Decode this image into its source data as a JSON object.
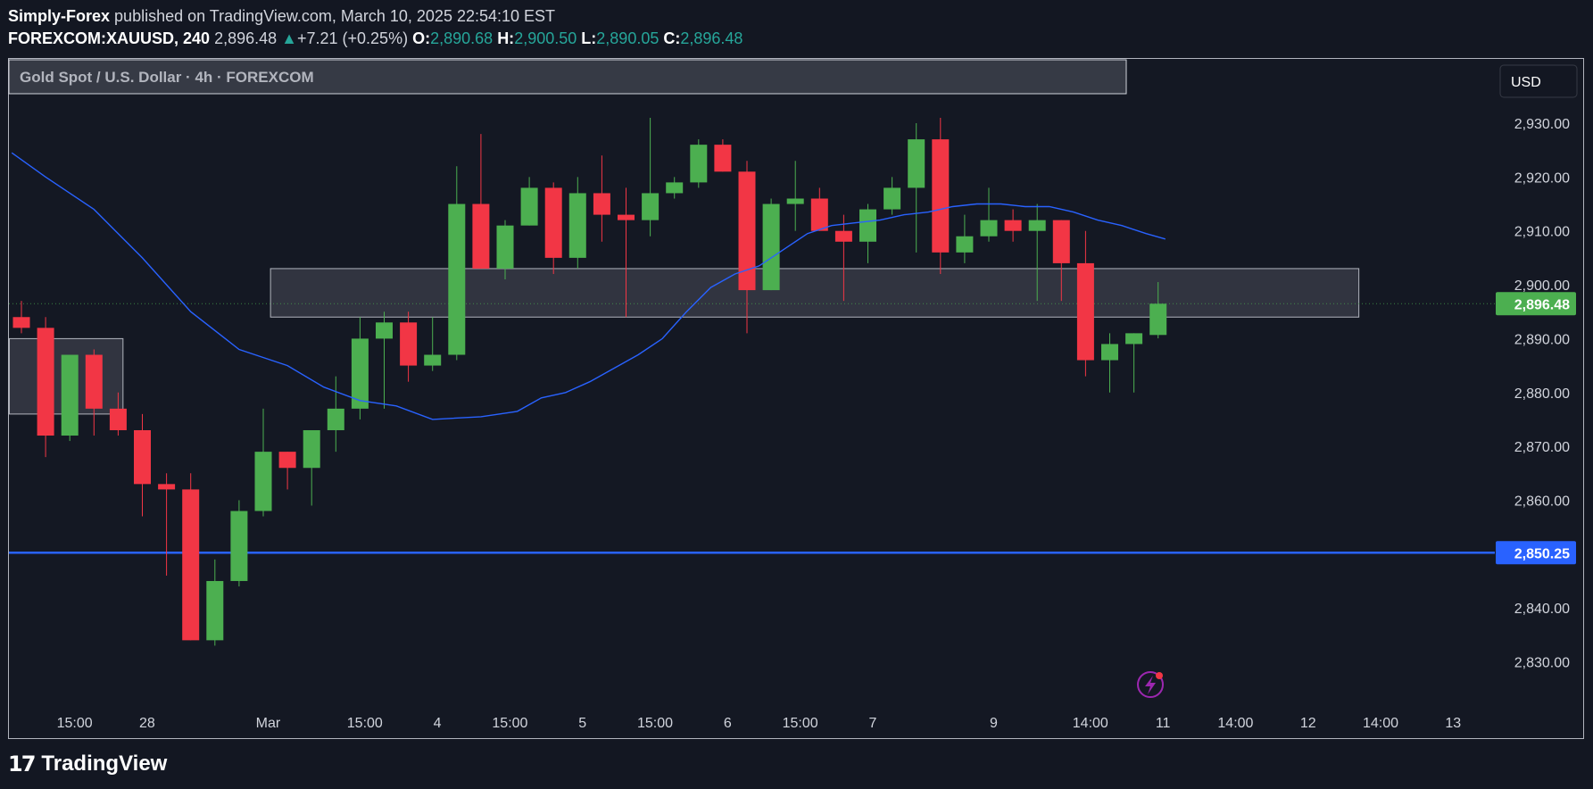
{
  "header": {
    "author": "Simply-Forex",
    "published_text": "published on TradingView.com, March 10, 2025 22:54:10 EST",
    "symbol": "FOREXCOM:XAUUSD, 240",
    "last_price": "2,896.48",
    "change_arrow": "▲",
    "change": "+7.21 (+0.25%)",
    "o_label": "O:",
    "o_value": "2,890.68",
    "h_label": "H:",
    "h_value": "2,900.50",
    "l_label": "L:",
    "l_value": "2,890.05",
    "c_label": "C:",
    "c_value": "2,896.48"
  },
  "legend": {
    "title": "Gold Spot / U.S. Dollar · 4h · FOREXCOM"
  },
  "currency_button": "USD",
  "footer": {
    "logo_mark": "17",
    "brand": "TradingView"
  },
  "colors": {
    "up": "#4caf50",
    "down": "#f23645",
    "ma": "#2962ff",
    "level": "#2962ff",
    "price_tag": "#4caf50",
    "level_tag": "#2962ff",
    "zone_fill": "#363a45",
    "zone_stroke": "#b2b5be",
    "bg": "#131722",
    "lightning": "#9c27b0"
  },
  "chart_data": {
    "type": "candlestick",
    "title": "Gold Spot / U.S. Dollar · 4h · FOREXCOM",
    "ylim": [
      2822,
      2939
    ],
    "y_ticks": [
      {
        "value": 2930,
        "label": "2,930.00"
      },
      {
        "value": 2920,
        "label": "2,920.00"
      },
      {
        "value": 2910,
        "label": "2,910.00"
      },
      {
        "value": 2900,
        "label": "2,900.00"
      },
      {
        "value": 2890,
        "label": "2,890.00"
      },
      {
        "value": 2880,
        "label": "2,880.00"
      },
      {
        "value": 2870,
        "label": "2,870.00"
      },
      {
        "value": 2860,
        "label": "2,860.00"
      },
      {
        "value": 2840,
        "label": "2,840.00"
      },
      {
        "value": 2830,
        "label": "2,830.00"
      }
    ],
    "x_ticks": [
      {
        "index": 2.2,
        "label": "15:00"
      },
      {
        "index": 5.2,
        "label": "28"
      },
      {
        "index": 10.2,
        "label": "Mar"
      },
      {
        "index": 14.2,
        "label": "15:00"
      },
      {
        "index": 17.2,
        "label": "4"
      },
      {
        "index": 20.2,
        "label": "15:00"
      },
      {
        "index": 23.2,
        "label": "5"
      },
      {
        "index": 26.2,
        "label": "15:00"
      },
      {
        "index": 29.2,
        "label": "6"
      },
      {
        "index": 32.2,
        "label": "15:00"
      },
      {
        "index": 35.2,
        "label": "7"
      },
      {
        "index": 40.2,
        "label": "9"
      },
      {
        "index": 44.2,
        "label": "14:00"
      },
      {
        "index": 47.2,
        "label": "11"
      },
      {
        "index": 50.2,
        "label": "14:00"
      },
      {
        "index": 53.2,
        "label": "12"
      },
      {
        "index": 56.2,
        "label": "14:00"
      },
      {
        "index": 59.2,
        "label": "13"
      }
    ],
    "candles": [
      {
        "o": 2894,
        "h": 2897,
        "l": 2891,
        "c": 2892
      },
      {
        "o": 2892,
        "h": 2894,
        "l": 2868,
        "c": 2872
      },
      {
        "o": 2872,
        "h": 2887,
        "l": 2871,
        "c": 2887
      },
      {
        "o": 2887,
        "h": 2888,
        "l": 2872,
        "c": 2877
      },
      {
        "o": 2877,
        "h": 2880,
        "l": 2872,
        "c": 2873
      },
      {
        "o": 2873,
        "h": 2876,
        "l": 2857,
        "c": 2863
      },
      {
        "o": 2863,
        "h": 2865,
        "l": 2846,
        "c": 2862
      },
      {
        "o": 2862,
        "h": 2865,
        "l": 2834,
        "c": 2834
      },
      {
        "o": 2834,
        "h": 2849,
        "l": 2833,
        "c": 2845
      },
      {
        "o": 2845,
        "h": 2860,
        "l": 2844,
        "c": 2858
      },
      {
        "o": 2858,
        "h": 2877,
        "l": 2857,
        "c": 2869
      },
      {
        "o": 2869,
        "h": 2869,
        "l": 2862,
        "c": 2866
      },
      {
        "o": 2866,
        "h": 2873,
        "l": 2859,
        "c": 2873
      },
      {
        "o": 2873,
        "h": 2883,
        "l": 2869,
        "c": 2877
      },
      {
        "o": 2877,
        "h": 2894,
        "l": 2875,
        "c": 2890
      },
      {
        "o": 2890,
        "h": 2895,
        "l": 2877,
        "c": 2893
      },
      {
        "o": 2893,
        "h": 2895,
        "l": 2882,
        "c": 2885
      },
      {
        "o": 2885,
        "h": 2894,
        "l": 2884,
        "c": 2887
      },
      {
        "o": 2887,
        "h": 2922,
        "l": 2886,
        "c": 2915
      },
      {
        "o": 2915,
        "h": 2928,
        "l": 2903,
        "c": 2903
      },
      {
        "o": 2903,
        "h": 2912,
        "l": 2901,
        "c": 2911
      },
      {
        "o": 2911,
        "h": 2920,
        "l": 2911,
        "c": 2918
      },
      {
        "o": 2918,
        "h": 2919,
        "l": 2902,
        "c": 2905
      },
      {
        "o": 2905,
        "h": 2920,
        "l": 2903,
        "c": 2917
      },
      {
        "o": 2917,
        "h": 2924,
        "l": 2908,
        "c": 2913
      },
      {
        "o": 2913,
        "h": 2918,
        "l": 2894,
        "c": 2912
      },
      {
        "o": 2912,
        "h": 2931,
        "l": 2909,
        "c": 2917
      },
      {
        "o": 2917,
        "h": 2920,
        "l": 2916,
        "c": 2919
      },
      {
        "o": 2919,
        "h": 2927,
        "l": 2918,
        "c": 2926
      },
      {
        "o": 2926,
        "h": 2927,
        "l": 2921,
        "c": 2921
      },
      {
        "o": 2921,
        "h": 2923,
        "l": 2891,
        "c": 2899
      },
      {
        "o": 2899,
        "h": 2916,
        "l": 2899,
        "c": 2915
      },
      {
        "o": 2915,
        "h": 2923,
        "l": 2910,
        "c": 2916
      },
      {
        "o": 2916,
        "h": 2918,
        "l": 2910,
        "c": 2910
      },
      {
        "o": 2910,
        "h": 2913,
        "l": 2897,
        "c": 2908
      },
      {
        "o": 2908,
        "h": 2915,
        "l": 2904,
        "c": 2914
      },
      {
        "o": 2914,
        "h": 2920,
        "l": 2913,
        "c": 2918
      },
      {
        "o": 2918,
        "h": 2930,
        "l": 2906,
        "c": 2927
      },
      {
        "o": 2927,
        "h": 2931,
        "l": 2902,
        "c": 2906
      },
      {
        "o": 2906,
        "h": 2913,
        "l": 2904,
        "c": 2909
      },
      {
        "o": 2909,
        "h": 2918,
        "l": 2908,
        "c": 2912
      },
      {
        "o": 2912,
        "h": 2914,
        "l": 2908,
        "c": 2910
      },
      {
        "o": 2910,
        "h": 2915,
        "l": 2897,
        "c": 2912
      },
      {
        "o": 2912,
        "h": 2912,
        "l": 2897,
        "c": 2904
      },
      {
        "o": 2904,
        "h": 2910,
        "l": 2883,
        "c": 2886
      },
      {
        "o": 2886,
        "h": 2891,
        "l": 2880,
        "c": 2889
      },
      {
        "o": 2889,
        "h": 2891,
        "l": 2880,
        "c": 2891
      },
      {
        "o": 2890.68,
        "h": 2900.5,
        "l": 2890.05,
        "c": 2896.48
      }
    ],
    "moving_average": {
      "name": "MA",
      "points": [
        {
          "i": -0.4,
          "v": 2924.5
        },
        {
          "i": 1,
          "v": 2920
        },
        {
          "i": 3,
          "v": 2914
        },
        {
          "i": 5,
          "v": 2905
        },
        {
          "i": 7,
          "v": 2895
        },
        {
          "i": 9,
          "v": 2888
        },
        {
          "i": 11,
          "v": 2885
        },
        {
          "i": 12.5,
          "v": 2881
        },
        {
          "i": 14,
          "v": 2878.5
        },
        {
          "i": 15.5,
          "v": 2877.5
        },
        {
          "i": 17,
          "v": 2875
        },
        {
          "i": 19,
          "v": 2875.5
        },
        {
          "i": 20.5,
          "v": 2876.5
        },
        {
          "i": 21.5,
          "v": 2879
        },
        {
          "i": 22.5,
          "v": 2880
        },
        {
          "i": 23.5,
          "v": 2882
        },
        {
          "i": 24.5,
          "v": 2884.5
        },
        {
          "i": 25.5,
          "v": 2887
        },
        {
          "i": 26.5,
          "v": 2890
        },
        {
          "i": 27.5,
          "v": 2895
        },
        {
          "i": 28.5,
          "v": 2899.5
        },
        {
          "i": 29.5,
          "v": 2902
        },
        {
          "i": 30.5,
          "v": 2903.5
        },
        {
          "i": 31.5,
          "v": 2906.5
        },
        {
          "i": 32.5,
          "v": 2909.5
        },
        {
          "i": 33.5,
          "v": 2911
        },
        {
          "i": 34.5,
          "v": 2911.5
        },
        {
          "i": 35.5,
          "v": 2912
        },
        {
          "i": 36.5,
          "v": 2913
        },
        {
          "i": 37.5,
          "v": 2913.5
        },
        {
          "i": 38.5,
          "v": 2914.5
        },
        {
          "i": 39.5,
          "v": 2915
        },
        {
          "i": 40.5,
          "v": 2915
        },
        {
          "i": 41.5,
          "v": 2914.5
        },
        {
          "i": 42.5,
          "v": 2914.5
        },
        {
          "i": 43.5,
          "v": 2913.5
        },
        {
          "i": 44.5,
          "v": 2912
        },
        {
          "i": 45.5,
          "v": 2911
        },
        {
          "i": 46.5,
          "v": 2909.5
        },
        {
          "i": 47.3,
          "v": 2908.5
        }
      ]
    },
    "zones": [
      {
        "name": "resistance-zone",
        "i_start": 10.3,
        "i_end": 55.3,
        "v_low": 2894,
        "v_high": 2903
      },
      {
        "name": "left-zone",
        "i_start": -0.5,
        "i_end": 4.2,
        "v_low": 2876,
        "v_high": 2890
      }
    ],
    "horizontal_level": {
      "value": 2850.25,
      "label": "2,850.25"
    },
    "current_price": {
      "value": 2896.48,
      "label": "2,896.48"
    },
    "last_price_dotted_line": 2896.48
  }
}
